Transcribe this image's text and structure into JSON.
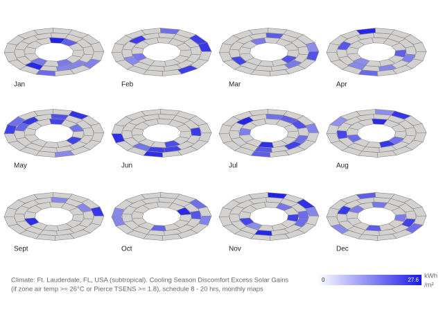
{
  "months": [
    "Jan",
    "Feb",
    "Mar",
    "Apr",
    "May",
    "Jun",
    "Jul",
    "Aug",
    "Sept",
    "Oct",
    "Nov",
    "Dec"
  ],
  "caption": [
    "Climate: Ft. Lauderdale, FL, USA (subtropical). Cooling Season Discomfort Excess Solar Gains",
    "(if zone air temp >= 26°C or Pierce TSENS >= 1.8), schedule 8 - 20 hrs, monthly maps"
  ],
  "legend": {
    "min": 0,
    "max": 27.6,
    "unit_top": "kWh",
    "unit_bottom": "/m²"
  }
}
